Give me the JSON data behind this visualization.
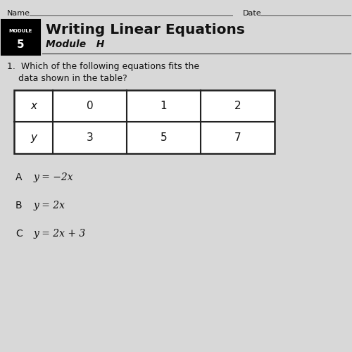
{
  "background_color": "#d8d8d8",
  "name_label": "Name",
  "date_label": "Date",
  "module_text": "MODULE",
  "module_number": "5",
  "title": "Writing Linear Equations",
  "subtitle": "Module   H",
  "question_line1": "1.  Which of the following equations fits the",
  "question_line2": "    data shown in the table?",
  "table_headers": [
    "x",
    "0",
    "1",
    "2"
  ],
  "table_row2": [
    "y",
    "3",
    "5",
    "7"
  ],
  "option_A_label": "A",
  "option_A_eq": "y = −2x",
  "option_B_label": "B",
  "option_B_eq": "y = 2x",
  "option_C_label": "C",
  "option_C_eq": "y = 2x + 3",
  "text_color": "#111111",
  "line_color": "#444444",
  "table_border_color": "#222222",
  "white": "#ffffff"
}
